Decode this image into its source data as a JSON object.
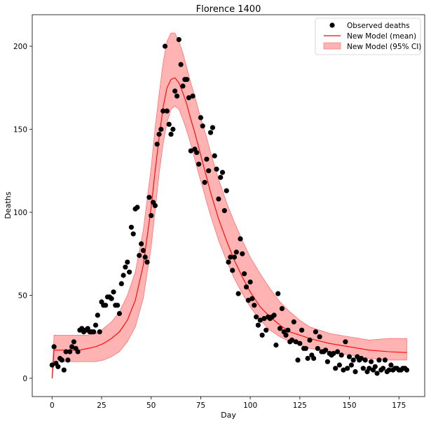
{
  "chart_data": {
    "type": "line",
    "title": "Florence 1400",
    "xlabel": "Day",
    "ylabel": "Deaths",
    "xlim": [
      -10,
      188
    ],
    "ylim": [
      -11,
      219
    ],
    "xticks": [
      0,
      25,
      50,
      75,
      100,
      125,
      150,
      175
    ],
    "yticks": [
      0,
      50,
      100,
      150,
      200
    ],
    "grid": false,
    "legend_position": "top-right",
    "legend": [
      "Observed deaths",
      "New Model (mean)",
      "New Model (95% CI)"
    ],
    "colors": {
      "observed": "#000000",
      "mean": "#ff0000",
      "ci_fill": "#ffb3b3",
      "ci_edge": "#ff6666"
    },
    "series": [
      {
        "name": "Observed deaths",
        "kind": "scatter",
        "x": [
          0,
          1,
          2,
          3,
          4,
          5,
          6,
          7,
          8,
          9,
          10,
          11,
          12,
          13,
          14,
          15,
          16,
          17,
          18,
          19,
          20,
          21,
          22,
          23,
          24,
          25,
          26,
          27,
          28,
          29,
          30,
          31,
          32,
          33,
          34,
          35,
          36,
          37,
          38,
          39,
          40,
          41,
          42,
          43,
          44,
          45,
          46,
          47,
          48,
          49,
          50,
          51,
          52,
          53,
          54,
          55,
          56,
          57,
          58,
          59,
          60,
          61,
          62,
          63,
          64,
          65,
          66,
          67,
          68,
          69,
          70,
          71,
          72,
          73,
          74,
          75,
          76,
          77,
          78,
          79,
          80,
          81,
          82,
          83,
          84,
          85,
          86,
          87,
          88,
          89,
          90,
          91,
          92,
          93,
          94,
          95,
          96,
          97,
          98,
          99,
          100,
          101,
          102,
          103,
          104,
          105,
          106,
          107,
          108,
          109,
          110,
          111,
          112,
          113,
          114,
          115,
          116,
          117,
          118,
          119,
          120,
          121,
          122,
          123,
          124,
          125,
          126,
          127,
          128,
          129,
          130,
          131,
          132,
          133,
          134,
          135,
          136,
          137,
          138,
          139,
          140,
          141,
          142,
          143,
          144,
          145,
          146,
          147,
          148,
          149,
          150,
          151,
          152,
          153,
          154,
          155,
          156,
          157,
          158,
          159,
          160,
          161,
          162,
          163,
          164,
          165,
          166,
          167,
          168,
          169,
          170,
          171,
          172,
          173,
          174,
          175,
          176,
          177,
          178,
          179
        ],
        "y": [
          8,
          19,
          9,
          7,
          12,
          11,
          5,
          16,
          11,
          16,
          19,
          22,
          18,
          16,
          29,
          30,
          28,
          29,
          30,
          28,
          28,
          28,
          32,
          38,
          28,
          46,
          44,
          44,
          49,
          49,
          48,
          52,
          44,
          44,
          39,
          57,
          62,
          67,
          70,
          64,
          91,
          87,
          102,
          103,
          74,
          81,
          77,
          73,
          70,
          109,
          98,
          106,
          104,
          141,
          147,
          150,
          161,
          200,
          161,
          153,
          147,
          150,
          173,
          170,
          204,
          189,
          176,
          180,
          180,
          169,
          137,
          170,
          138,
          136,
          129,
          157,
          152,
          118,
          132,
          125,
          148,
          151,
          134,
          126,
          108,
          121,
          124,
          101,
          113,
          70,
          73,
          65,
          73,
          76,
          51,
          84,
          75,
          63,
          55,
          47,
          58,
          48,
          44,
          37,
          32,
          35,
          26,
          36,
          29,
          37,
          36,
          37,
          38,
          20,
          51,
          30,
          42,
          28,
          26,
          29,
          22,
          23,
          34,
          22,
          11,
          21,
          29,
          18,
          18,
          12,
          23,
          14,
          12,
          28,
          18,
          25,
          16,
          16,
          17,
          10,
          15,
          14,
          15,
          6,
          16,
          8,
          14,
          5,
          22,
          6,
          13,
          8,
          11,
          4,
          13,
          11,
          12,
          6,
          11,
          4,
          6,
          10,
          5,
          7,
          3,
          11,
          5,
          6,
          11,
          4,
          5,
          8,
          5,
          6,
          6,
          5,
          5,
          6,
          6,
          5
        ]
      },
      {
        "name": "New Model (mean)",
        "kind": "line",
        "x": [
          0,
          1,
          2,
          4,
          6,
          10,
          14,
          18,
          22,
          26,
          30,
          34,
          38,
          42,
          46,
          50,
          52,
          54,
          56,
          58,
          60,
          62,
          64,
          66,
          68,
          70,
          72,
          74,
          76,
          78,
          80,
          84,
          88,
          92,
          96,
          100,
          105,
          110,
          115,
          120,
          125,
          130,
          140,
          150,
          160,
          170,
          179
        ],
        "y": [
          0,
          17,
          17,
          17,
          17,
          17,
          17,
          18,
          19,
          21,
          24,
          28,
          35,
          47,
          68,
          103,
          125,
          145,
          163,
          175,
          180,
          181,
          178,
          172,
          165,
          156,
          148,
          139,
          130,
          121,
          112,
          96,
          83,
          71,
          61,
          52,
          43,
          37,
          32,
          28,
          26,
          24,
          21,
          19,
          17,
          16,
          15.5
        ]
      },
      {
        "name": "New Model (95% CI)",
        "kind": "band",
        "x": [
          0,
          1,
          2,
          4,
          6,
          10,
          14,
          18,
          22,
          26,
          30,
          34,
          38,
          42,
          46,
          50,
          52,
          54,
          56,
          58,
          60,
          62,
          64,
          66,
          68,
          70,
          72,
          74,
          76,
          78,
          80,
          84,
          88,
          92,
          96,
          100,
          105,
          110,
          115,
          120,
          125,
          130,
          140,
          150,
          160,
          170,
          179
        ],
        "y_lower": [
          0,
          10,
          10,
          10,
          10,
          10,
          10,
          10,
          10,
          11,
          13,
          16,
          22,
          31,
          48,
          79,
          101,
          123,
          141,
          154,
          162,
          164,
          162,
          156,
          149,
          141,
          132,
          123,
          115,
          106,
          98,
          83,
          71,
          60,
          51,
          43,
          35,
          29,
          25,
          22,
          20,
          18,
          16,
          14,
          12,
          11,
          11
        ],
        "y_upper": [
          0,
          26,
          26,
          26,
          26,
          26,
          26,
          26,
          27,
          30,
          34,
          40,
          50,
          64,
          89,
          127,
          151,
          171,
          190,
          203,
          208,
          208,
          203,
          196,
          187,
          178,
          170,
          161,
          153,
          145,
          136,
          120,
          106,
          94,
          83,
          73,
          63,
          54,
          46,
          40,
          35,
          31,
          27,
          25,
          23,
          24,
          24
        ]
      }
    ]
  }
}
